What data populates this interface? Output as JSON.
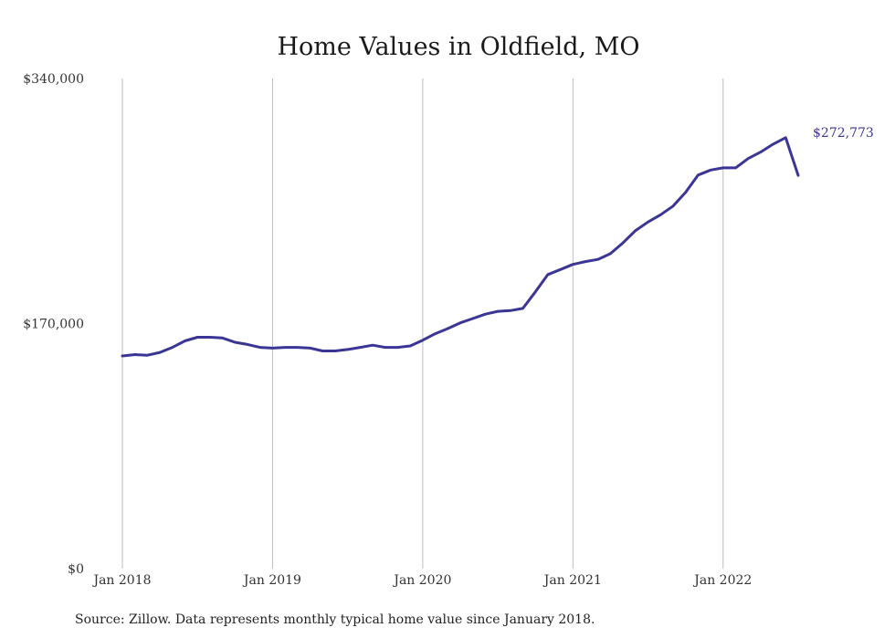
{
  "chart_data": {
    "type": "line",
    "title": "Home Values in Oldfield, MO",
    "xlabel": "",
    "ylabel": "",
    "x_tick_labels": [
      "Jan 2018",
      "Jan 2019",
      "Jan 2020",
      "Jan 2021",
      "Jan 2022"
    ],
    "y_tick_labels": [
      "$0",
      "$170,000",
      "$340,000"
    ],
    "ylim": [
      0,
      340000
    ],
    "xlim": [
      "2018-01",
      "2022-07"
    ],
    "grid": "vertical",
    "legend": "none",
    "line_color": "#3b3596",
    "series": [
      {
        "x": [
          "2018-01",
          "2018-02",
          "2018-03",
          "2018-04",
          "2018-05",
          "2018-06",
          "2018-07",
          "2018-08",
          "2018-09",
          "2018-10",
          "2018-11",
          "2018-12",
          "2019-01",
          "2019-02",
          "2019-03",
          "2019-04",
          "2019-05",
          "2019-06",
          "2019-07",
          "2019-08",
          "2019-09",
          "2019-10",
          "2019-11",
          "2019-12",
          "2020-01",
          "2020-02",
          "2020-03",
          "2020-04",
          "2020-05",
          "2020-06",
          "2020-07",
          "2020-08",
          "2020-09",
          "2020-10",
          "2020-11",
          "2020-12",
          "2021-01",
          "2021-02",
          "2021-03",
          "2021-04",
          "2021-05",
          "2021-06",
          "2021-07",
          "2021-08",
          "2021-09",
          "2021-10",
          "2021-11",
          "2021-12",
          "2022-01",
          "2022-02",
          "2022-03",
          "2022-04",
          "2022-05",
          "2022-06",
          "2022-07"
        ],
        "values": [
          147500,
          148500,
          148000,
          150000,
          153500,
          158000,
          160500,
          160500,
          160000,
          157000,
          155500,
          153500,
          153000,
          153500,
          153500,
          153000,
          151000,
          151000,
          152000,
          153500,
          155000,
          153500,
          153500,
          154500,
          158500,
          163000,
          166500,
          170500,
          173500,
          176500,
          178500,
          179000,
          180500,
          192000,
          204000,
          207500,
          211000,
          213000,
          214500,
          218500,
          226000,
          234500,
          240500,
          245500,
          251500,
          261000,
          273000,
          276500,
          278000,
          278000,
          284500,
          289000,
          294500,
          299000,
          272773
        ]
      }
    ],
    "end_label": "$272,773"
  },
  "footer": {
    "source": "Source: Zillow. Data represents monthly typical home value since January 2018."
  }
}
